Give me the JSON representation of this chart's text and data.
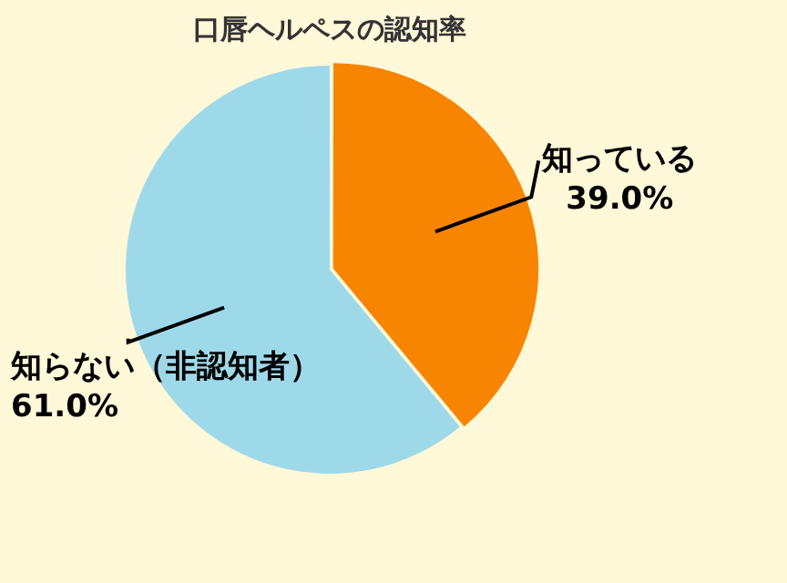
{
  "chart_data": {
    "type": "pie",
    "title": "口唇ヘルペスの認知率",
    "categories": [
      "知っている",
      "知らない（非認知者）"
    ],
    "values": [
      39.0,
      61.0
    ],
    "colors": [
      "#f78500",
      "#9ed9ea"
    ],
    "value_labels": [
      "39.0%",
      "61.0%"
    ]
  }
}
